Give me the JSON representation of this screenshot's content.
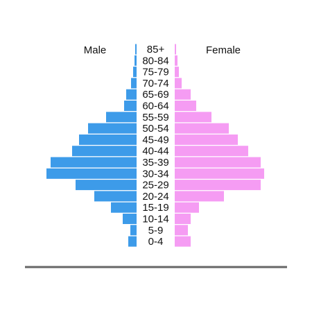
{
  "chart_data": {
    "type": "pyramid",
    "categories": [
      "85+",
      "80-84",
      "75-79",
      "70-74",
      "65-69",
      "60-64",
      "55-59",
      "50-54",
      "45-49",
      "40-44",
      "35-39",
      "30-34",
      "25-29",
      "20-24",
      "15-19",
      "10-14",
      "5-9",
      "0-4"
    ],
    "series": [
      {
        "name": "Male",
        "color": "#3d9be9",
        "values": [
          2,
          3,
          5,
          8,
          15,
          18,
          44,
          70,
          83,
          93,
          124,
          130,
          88,
          61,
          37,
          20,
          9,
          12
        ]
      },
      {
        "name": "Female",
        "color": "#f59cf3",
        "values": [
          2,
          4,
          6,
          10,
          23,
          31,
          53,
          78,
          91,
          106,
          124,
          129,
          124,
          71,
          35,
          23,
          19,
          23
        ]
      }
    ]
  }
}
